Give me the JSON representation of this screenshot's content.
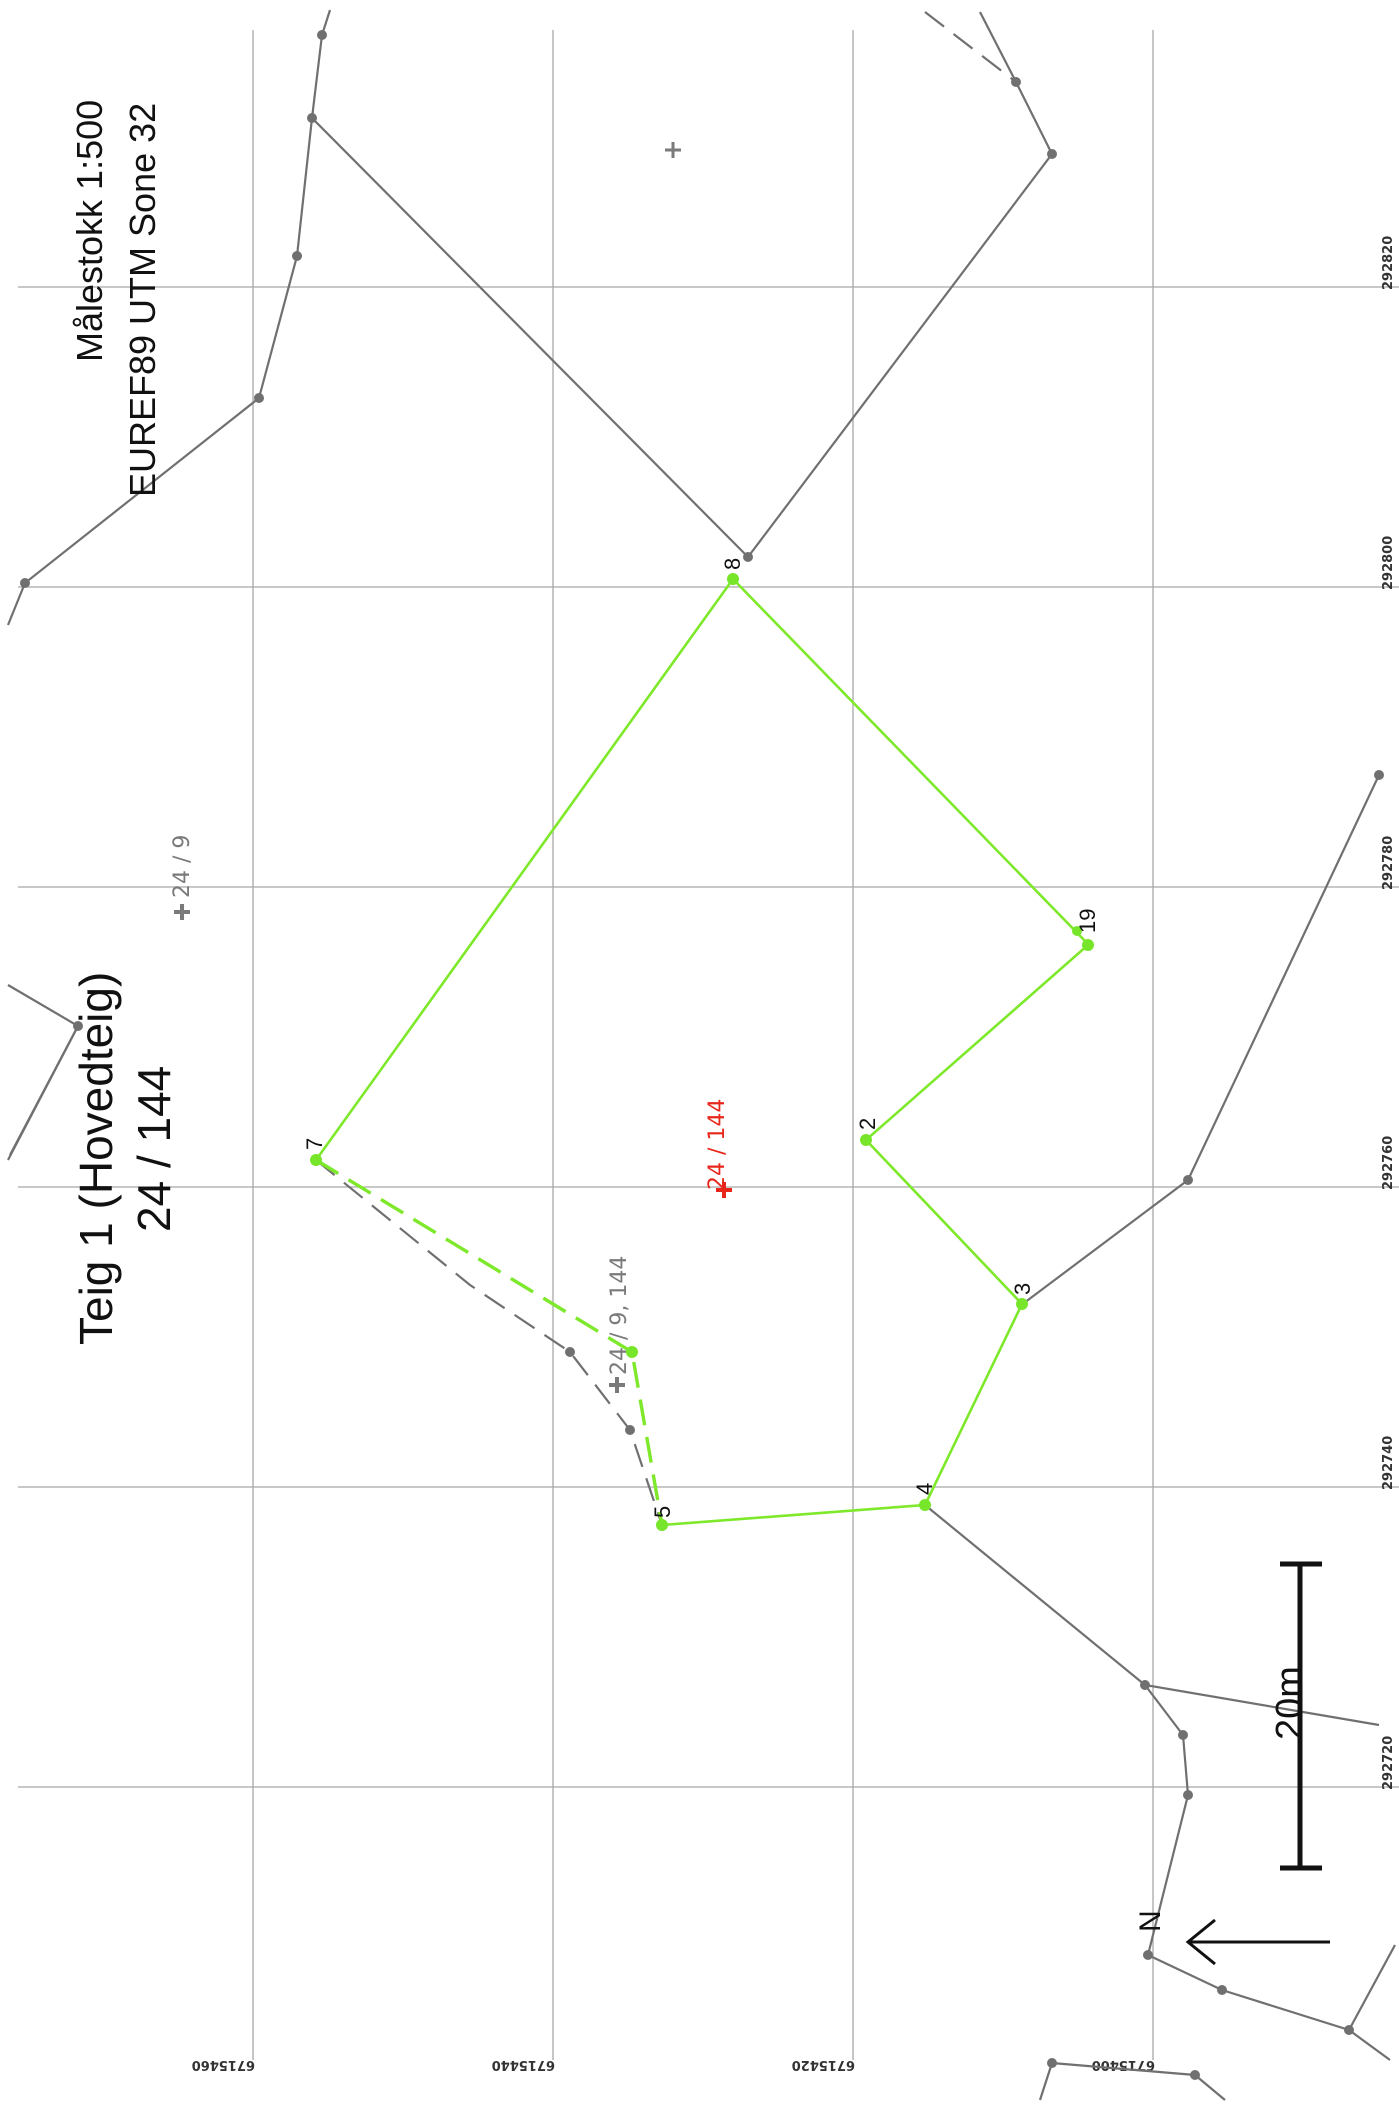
{
  "title": {
    "line1": "Teig 1 (Hovedteig)",
    "line2": "24 / 144"
  },
  "map_info": {
    "scale": "Målestokk 1:500",
    "projection": "EUREF89 UTM Sone 32"
  },
  "grid": {
    "easting_labels": [
      "292820",
      "292800",
      "292780",
      "292760",
      "292740",
      "292720"
    ],
    "northing_labels": [
      "6715460",
      "6715440",
      "6715420",
      "6715400"
    ]
  },
  "parcel_points": {
    "p2": "2",
    "p3": "3",
    "p4": "4",
    "p5": "5",
    "p7": "7",
    "p8": "8",
    "p19": "19"
  },
  "parcel_labels": {
    "main": "24 / 144",
    "neighbor_24_9": "24 / 9",
    "neighbor_shared": "24 / 9, 144"
  },
  "scale_bar": {
    "label": "20m"
  },
  "north_arrow": {
    "label": "N"
  },
  "colors": {
    "parcel": "#7ee82a",
    "neighbor": "#707070",
    "main_label": "#e8271c",
    "grid": "#a8a8a8"
  }
}
